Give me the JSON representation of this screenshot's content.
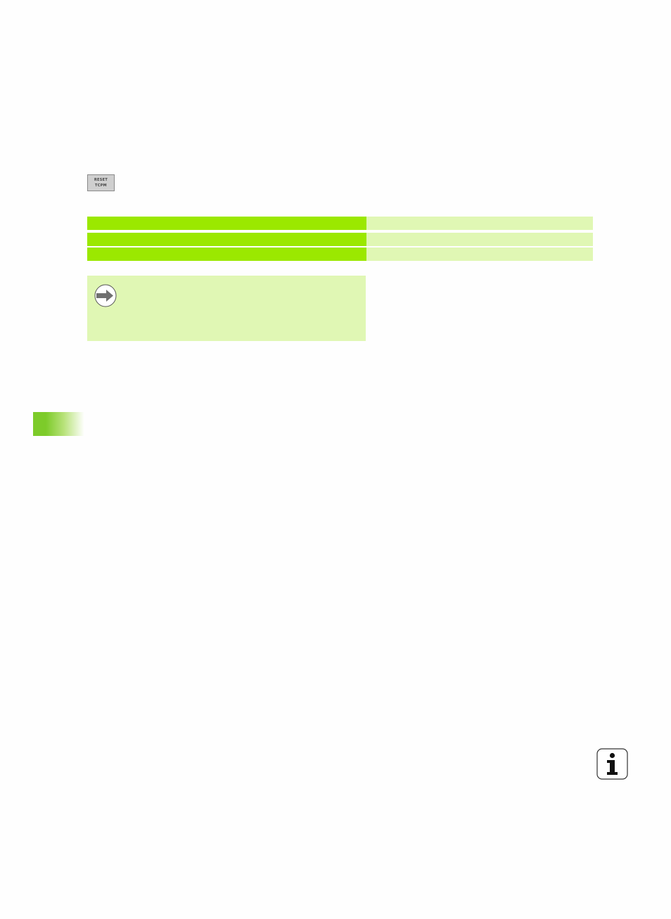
{
  "softkey": {
    "line1": "RESET",
    "line2": "TCPM"
  },
  "table": {
    "rows": [
      {
        "key": "",
        "value": ""
      },
      {
        "key": "",
        "value": ""
      },
      {
        "key": "",
        "value": ""
      }
    ]
  },
  "note": {
    "icon": "arrow-right-icon",
    "text": ""
  },
  "colors": {
    "key_cell": "#9be800",
    "value_cell": "#e0f7b4",
    "chapter_tab": "#7dcb2a"
  },
  "footer": {
    "icon": "info-icon"
  }
}
